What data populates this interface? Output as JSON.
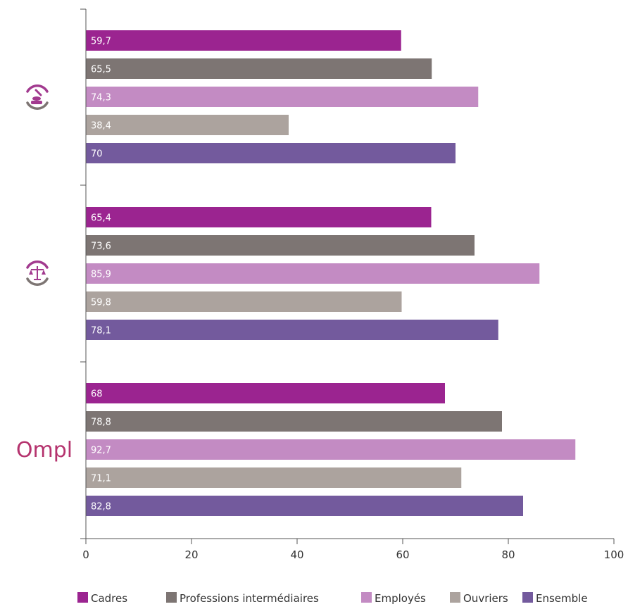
{
  "chart_data": {
    "type": "bar",
    "orientation": "horizontal",
    "groups": [
      {
        "icon": "hand-brush-icon"
      },
      {
        "icon": "scales-of-justice-icon"
      },
      {
        "icon": "ompl-logo",
        "logo_text": "Ompl"
      }
    ],
    "series": [
      {
        "name": "Cadres",
        "color": "#9b2490",
        "values": [
          59.7,
          65.4,
          68
        ]
      },
      {
        "name": "Professions intermédiaires",
        "color": "#7d7573",
        "values": [
          65.5,
          73.6,
          78.8
        ]
      },
      {
        "name": "Employés",
        "color": "#c38bc3",
        "values": [
          74.3,
          85.9,
          92.7
        ]
      },
      {
        "name": "Ouvriers",
        "color": "#aca39e",
        "values": [
          38.4,
          59.8,
          71.1
        ]
      },
      {
        "name": "Ensemble",
        "color": "#735a9d",
        "values": [
          70,
          78.1,
          82.8
        ]
      }
    ],
    "value_labels": [
      [
        "59,7",
        "65,5",
        "74,3",
        "38,4",
        "70"
      ],
      [
        "65,4",
        "73,6",
        "85,9",
        "59,8",
        "78,1"
      ],
      [
        "68",
        "78,8",
        "92,7",
        "71,1",
        "82,8"
      ]
    ],
    "xlim": [
      0,
      100
    ],
    "xticks": [
      0,
      20,
      40,
      60,
      80,
      100
    ],
    "xtick_labels": [
      "0",
      "20",
      "40",
      "60",
      "80",
      "100"
    ],
    "grid": false,
    "legend_position": "bottom"
  }
}
